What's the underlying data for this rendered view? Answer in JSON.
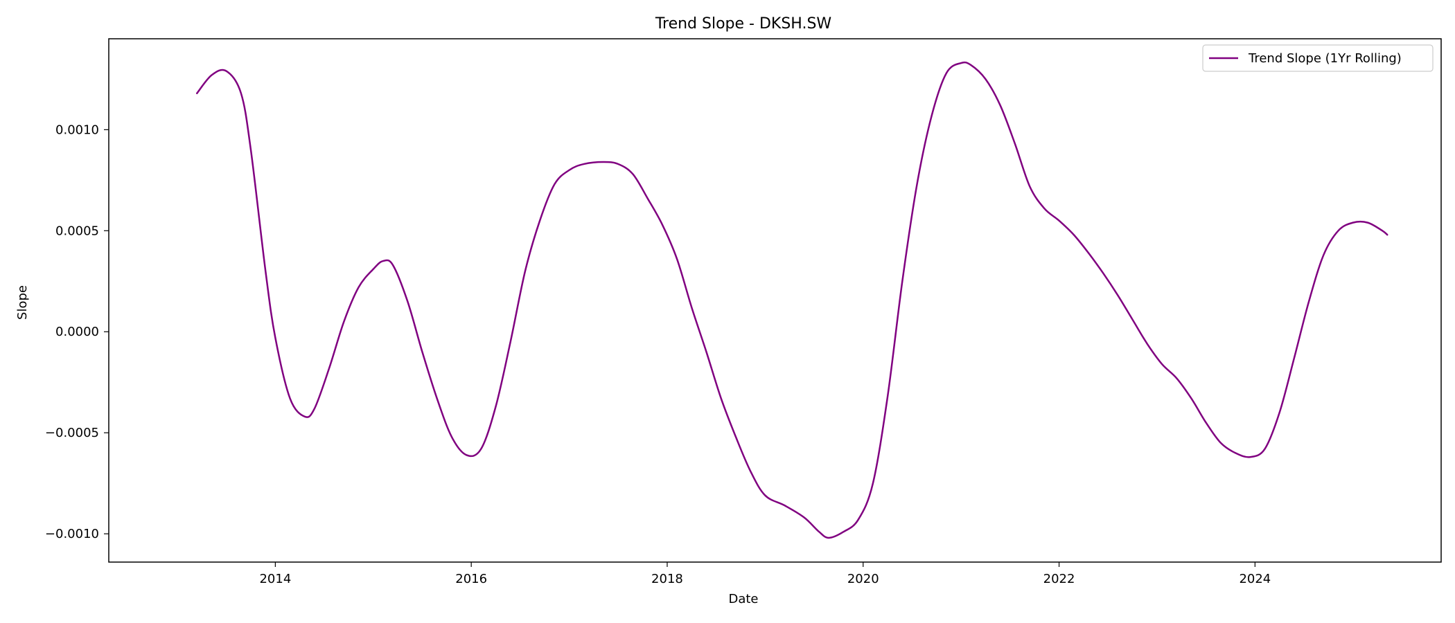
{
  "chart_data": {
    "type": "line",
    "title": "Trend Slope - DKSH.SW",
    "xlabel": "Date",
    "ylabel": "Slope",
    "xlim": [
      2012.3,
      2025.9
    ],
    "ylim": [
      -0.00114,
      0.00145
    ],
    "x_ticks": [
      2014,
      2016,
      2018,
      2020,
      2022,
      2024
    ],
    "x_tick_labels": [
      "2014",
      "2016",
      "2018",
      "2020",
      "2022",
      "2024"
    ],
    "y_ticks": [
      -0.001,
      -0.0005,
      0.0,
      0.0005,
      0.001
    ],
    "y_tick_labels": [
      "−0.0010",
      "−0.0005",
      "0.0000",
      "0.0005",
      "0.0010"
    ],
    "grid": false,
    "legend_position": "top-right",
    "series": [
      {
        "name": "Trend Slope (1Yr Rolling)",
        "color": "#800080",
        "x": [
          2013.2,
          2013.35,
          2013.5,
          2013.65,
          2013.75,
          2013.9,
          2014.0,
          2014.15,
          2014.3,
          2014.4,
          2014.55,
          2014.7,
          2014.85,
          2015.0,
          2015.1,
          2015.2,
          2015.35,
          2015.5,
          2015.65,
          2015.8,
          2015.95,
          2016.1,
          2016.25,
          2016.4,
          2016.55,
          2016.7,
          2016.85,
          2017.0,
          2017.15,
          2017.35,
          2017.5,
          2017.65,
          2017.8,
          2017.95,
          2018.1,
          2018.25,
          2018.4,
          2018.55,
          2018.7,
          2018.85,
          2019.0,
          2019.2,
          2019.4,
          2019.55,
          2019.65,
          2019.8,
          2019.95,
          2020.1,
          2020.25,
          2020.4,
          2020.55,
          2020.7,
          2020.85,
          2021.0,
          2021.1,
          2021.25,
          2021.4,
          2021.55,
          2021.7,
          2021.85,
          2022.0,
          2022.15,
          2022.3,
          2022.45,
          2022.6,
          2022.75,
          2022.9,
          2023.05,
          2023.2,
          2023.35,
          2023.5,
          2023.65,
          2023.8,
          2023.95,
          2024.1,
          2024.25,
          2024.4,
          2024.55,
          2024.7,
          2024.85,
          2025.0,
          2025.15,
          2025.3,
          2025.35
        ],
        "y": [
          0.00118,
          0.00127,
          0.00129,
          0.00118,
          0.0009,
          0.0003,
          -3e-05,
          -0.00033,
          -0.00042,
          -0.00038,
          -0.00018,
          5e-05,
          0.00022,
          0.00031,
          0.00035,
          0.00033,
          0.00015,
          -0.0001,
          -0.00033,
          -0.00052,
          -0.00061,
          -0.00058,
          -0.00037,
          -5e-05,
          0.0003,
          0.00055,
          0.00073,
          0.0008,
          0.00083,
          0.00084,
          0.00083,
          0.00078,
          0.00066,
          0.00053,
          0.00036,
          0.00012,
          -0.0001,
          -0.00033,
          -0.00052,
          -0.00069,
          -0.00081,
          -0.00086,
          -0.00092,
          -0.00099,
          -0.00102,
          -0.00099,
          -0.00093,
          -0.00075,
          -0.00032,
          0.00025,
          0.00073,
          0.00107,
          0.00128,
          0.00133,
          0.00132,
          0.00125,
          0.00112,
          0.00093,
          0.00072,
          0.00061,
          0.00055,
          0.00048,
          0.00039,
          0.00029,
          0.00018,
          6e-05,
          -6e-05,
          -0.00016,
          -0.00023,
          -0.00033,
          -0.00045,
          -0.00055,
          -0.0006,
          -0.00062,
          -0.00058,
          -0.0004,
          -0.00013,
          0.00015,
          0.00038,
          0.0005,
          0.00054,
          0.00054,
          0.0005,
          0.00048
        ]
      }
    ]
  }
}
